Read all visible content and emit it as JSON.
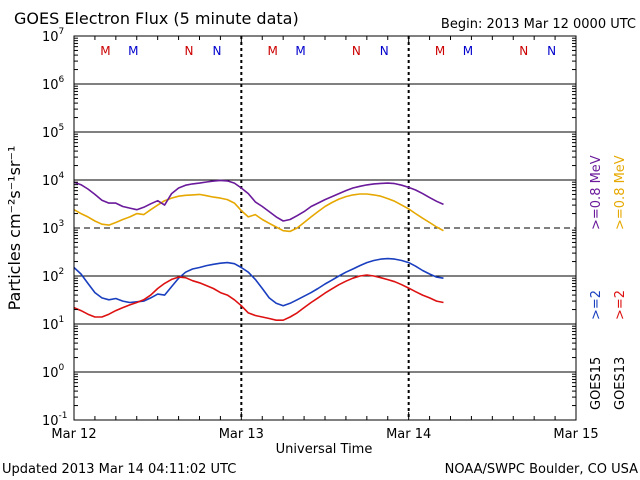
{
  "chart_data": {
    "type": "line",
    "title": "GOES Electron Flux (5 minute data)",
    "begin_label": "Begin: 2013 Mar 12 0000 UTC",
    "ylabel": "Particles cm⁻²s⁻¹sr⁻¹",
    "xlabel": "Universal Time",
    "yscale": "log",
    "ylim": [
      0.1,
      10000000
    ],
    "ytick_labels": [
      {
        "exp": 7,
        "text": "10",
        "sup": "7"
      },
      {
        "exp": 6,
        "text": "10",
        "sup": "6"
      },
      {
        "exp": 5,
        "text": "10",
        "sup": "5"
      },
      {
        "exp": 4,
        "text": "10",
        "sup": "4"
      },
      {
        "exp": 3,
        "text": "10",
        "sup": "3"
      },
      {
        "exp": 2,
        "text": "10",
        "sup": "2"
      },
      {
        "exp": 1,
        "text": "10",
        "sup": "1"
      },
      {
        "exp": 0,
        "text": "10",
        "sup": "0"
      },
      {
        "exp": -1,
        "text": "10",
        "sup": "-1"
      }
    ],
    "x_unit": "hours since 2013 Mar 12 0000 UTC",
    "xlim": [
      0,
      72
    ],
    "x_tick_labels": [
      {
        "hour": 0,
        "label": "Mar 12"
      },
      {
        "hour": 24,
        "label": "Mar 13"
      },
      {
        "hour": 48,
        "label": "Mar 14"
      },
      {
        "hour": 72,
        "label": "Mar 15"
      }
    ],
    "threshold_line": {
      "value": 1000,
      "style": "dashed"
    },
    "midnight_markers": [
      {
        "hour": 24
      },
      {
        "hour": 48
      }
    ],
    "local_time_markers": [
      {
        "hour": 4.5,
        "text": "M",
        "color": "#cc0000"
      },
      {
        "hour": 8.5,
        "text": "M",
        "color": "#0000cc"
      },
      {
        "hour": 16.5,
        "text": "N",
        "color": "#cc0000"
      },
      {
        "hour": 20.5,
        "text": "N",
        "color": "#0000cc"
      },
      {
        "hour": 28.5,
        "text": "M",
        "color": "#cc0000"
      },
      {
        "hour": 32.5,
        "text": "M",
        "color": "#0000cc"
      },
      {
        "hour": 40.5,
        "text": "N",
        "color": "#cc0000"
      },
      {
        "hour": 44.5,
        "text": "N",
        "color": "#0000cc"
      },
      {
        "hour": 52.5,
        "text": "M",
        "color": "#cc0000"
      },
      {
        "hour": 56.5,
        "text": "M",
        "color": "#0000cc"
      },
      {
        "hour": 64.5,
        "text": "N",
        "color": "#cc0000"
      },
      {
        "hour": 68.5,
        "text": "N",
        "color": "#0000cc"
      }
    ],
    "series": [
      {
        "name": "GOES13 >=0.8 MeV",
        "color": "#e6a800",
        "x": [
          0,
          1,
          2,
          3,
          4,
          5,
          6,
          7,
          8,
          9,
          10,
          11,
          12,
          13,
          14,
          15,
          16,
          17,
          18,
          19,
          20,
          21,
          22,
          23,
          24,
          25,
          26,
          27,
          28,
          29,
          30,
          31,
          32,
          33,
          34,
          35,
          36,
          37,
          38,
          39,
          40,
          41,
          42,
          43,
          44,
          45,
          46,
          47,
          48,
          49,
          50,
          51,
          52,
          53
        ],
        "y": [
          2400,
          2000,
          1700,
          1400,
          1200,
          1150,
          1300,
          1500,
          1700,
          2000,
          1900,
          2400,
          3000,
          3700,
          4200,
          4600,
          4800,
          4900,
          5000,
          4700,
          4400,
          4200,
          3900,
          3300,
          2300,
          1700,
          1900,
          1500,
          1250,
          1050,
          880,
          850,
          1000,
          1300,
          1700,
          2200,
          2800,
          3400,
          4000,
          4500,
          4900,
          5100,
          5100,
          4900,
          4600,
          4100,
          3600,
          3000,
          2500,
          2000,
          1600,
          1300,
          1050,
          880
        ]
      },
      {
        "name": "GOES15 >=0.8 MeV",
        "color": "#6a1a9a",
        "x": [
          0,
          1,
          2,
          3,
          4,
          5,
          6,
          7,
          8,
          9,
          10,
          11,
          12,
          13,
          14,
          15,
          16,
          17,
          18,
          19,
          20,
          21,
          22,
          23,
          24,
          25,
          26,
          27,
          28,
          29,
          30,
          31,
          32,
          33,
          34,
          35,
          36,
          37,
          38,
          39,
          40,
          41,
          42,
          43,
          44,
          45,
          46,
          47,
          48,
          49,
          50,
          51,
          52,
          53
        ],
        "y": [
          9000,
          8000,
          6500,
          5000,
          3800,
          3300,
          3300,
          2800,
          2600,
          2400,
          2700,
          3200,
          3700,
          3000,
          5200,
          6800,
          7800,
          8300,
          8600,
          9100,
          9500,
          9800,
          9600,
          8600,
          6800,
          5200,
          3500,
          2800,
          2200,
          1700,
          1400,
          1500,
          1800,
          2200,
          2800,
          3300,
          3900,
          4500,
          5200,
          6000,
          6800,
          7400,
          7900,
          8300,
          8500,
          8600,
          8400,
          7800,
          7000,
          6200,
          5200,
          4300,
          3600,
          3100
        ]
      },
      {
        "name": "GOES15 >=2 MeV",
        "color": "#1a3fbf",
        "x": [
          0,
          1,
          2,
          3,
          4,
          5,
          6,
          7,
          8,
          9,
          10,
          11,
          12,
          13,
          14,
          15,
          16,
          17,
          18,
          19,
          20,
          21,
          22,
          23,
          24,
          25,
          26,
          27,
          28,
          29,
          30,
          31,
          32,
          33,
          34,
          35,
          36,
          37,
          38,
          39,
          40,
          41,
          42,
          43,
          44,
          45,
          46,
          47,
          48,
          49,
          50,
          51,
          52,
          53
        ],
        "y": [
          150,
          110,
          70,
          45,
          35,
          32,
          34,
          30,
          28,
          29,
          30,
          35,
          42,
          40,
          60,
          90,
          120,
          140,
          150,
          165,
          175,
          185,
          190,
          180,
          150,
          120,
          85,
          55,
          35,
          27,
          24,
          27,
          32,
          38,
          45,
          55,
          68,
          82,
          100,
          120,
          140,
          165,
          190,
          210,
          225,
          230,
          225,
          210,
          190,
          160,
          130,
          110,
          95,
          90
        ]
      },
      {
        "name": "GOES13 >=2 MeV",
        "color": "#dd1111",
        "x": [
          0,
          1,
          2,
          3,
          4,
          5,
          6,
          7,
          8,
          9,
          10,
          11,
          12,
          13,
          14,
          15,
          16,
          17,
          18,
          19,
          20,
          21,
          22,
          23,
          24,
          25,
          26,
          27,
          28,
          29,
          30,
          31,
          32,
          33,
          34,
          35,
          36,
          37,
          38,
          39,
          40,
          41,
          42,
          43,
          44,
          45,
          46,
          47,
          48,
          49,
          50,
          51,
          52,
          53
        ],
        "y": [
          22,
          19,
          16,
          14,
          14,
          16,
          19,
          22,
          25,
          28,
          32,
          40,
          55,
          70,
          85,
          95,
          92,
          80,
          72,
          63,
          55,
          45,
          40,
          32,
          24,
          17,
          15,
          14,
          13,
          12,
          12,
          14,
          17,
          22,
          28,
          35,
          44,
          54,
          66,
          78,
          90,
          100,
          105,
          100,
          92,
          84,
          76,
          66,
          56,
          47,
          40,
          35,
          30,
          28
        ]
      }
    ],
    "legend": [
      {
        "text": ">=0.8 MeV",
        "color": "#6a1a9a"
      },
      {
        "text": ">=0.8 MeV",
        "color": "#e6a800"
      },
      {
        "text": ">=2",
        "color": "#1a3fbf"
      },
      {
        "text": ">=2",
        "color": "#dd1111"
      },
      {
        "text": "GOES15",
        "color": "#000000"
      },
      {
        "text": "GOES13",
        "color": "#000000"
      }
    ],
    "footer_left": "Updated 2013 Mar 14 04:11:02 UTC",
    "footer_right": "NOAA/SWPC Boulder, CO USA"
  }
}
